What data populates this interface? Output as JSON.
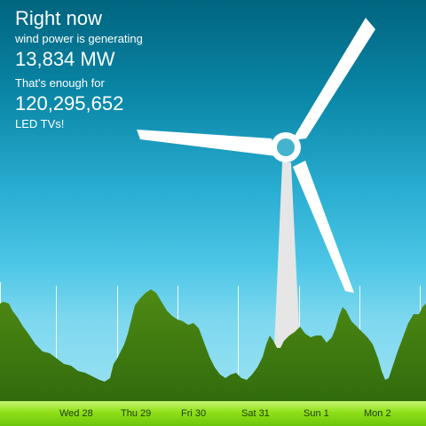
{
  "headline": {
    "title": "Right now",
    "generating_label": "wind power is generating",
    "power_value": "13,834 MW",
    "enough_label": "That's enough for",
    "tv_count": "120,295,652",
    "tv_label": "LED TVs!"
  },
  "timeline": {
    "days": [
      "Wed 28",
      "Thu 29",
      "Fri 30",
      "Sat 31",
      "Sun 1",
      "Mon 2"
    ]
  },
  "colors": {
    "chart_fill": "#3a7a10",
    "ground": "#8fe018",
    "turbine": "#ffffff",
    "tower": "#e6e6e6"
  }
}
